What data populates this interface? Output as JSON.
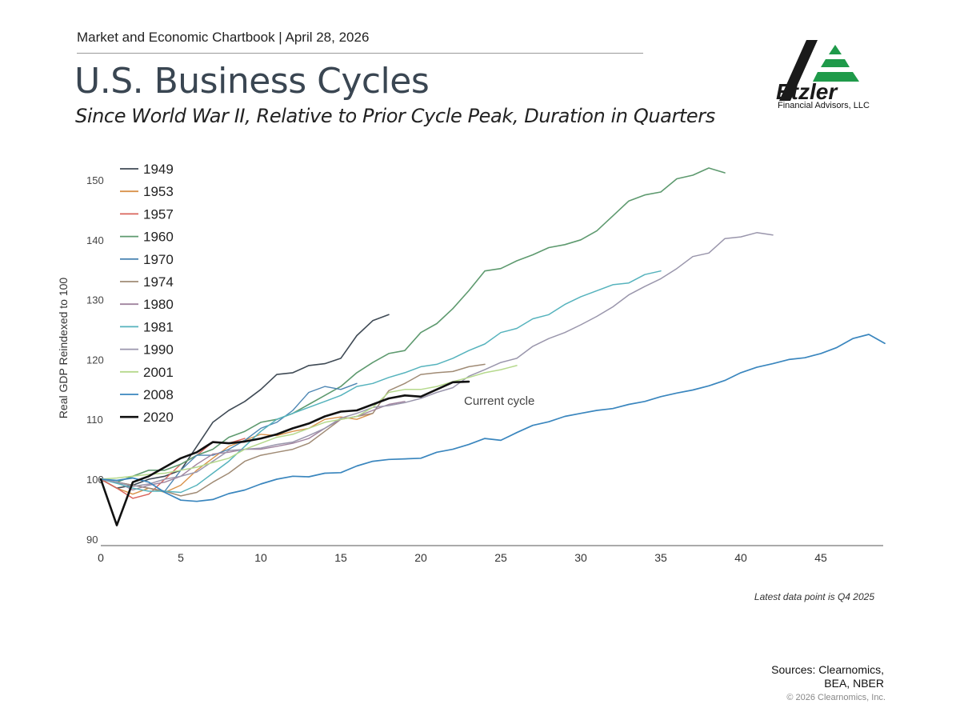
{
  "header": {
    "chartbook": "Market and Economic Chartbook | April 28, 2026",
    "title": "U.S. Business Cycles",
    "subtitle": "Since World War II, Relative to Prior Cycle Peak, Duration in Quarters"
  },
  "logo": {
    "name": "Etzler",
    "tagline": "Financial Advisors, LLC",
    "colors": {
      "dark": "#1a1a1a",
      "green": "#1f9a4a"
    }
  },
  "chart_data": {
    "type": "line",
    "title": "U.S. Business Cycles",
    "xlabel": "",
    "ylabel": "Real GDP Reindexed to 100",
    "xlim": [
      0,
      49
    ],
    "ylim": [
      90,
      152
    ],
    "x_ticks": [
      0,
      5,
      10,
      15,
      20,
      25,
      30,
      35,
      40,
      45
    ],
    "y_ticks": [
      90,
      100,
      110,
      120,
      130,
      140,
      150
    ],
    "grid": false,
    "legend_position": "top-left",
    "annotation": "Current cycle",
    "series": [
      {
        "name": "1949",
        "color": "#3f4a55",
        "width": 1.6,
        "values": [
          100,
          98.5,
          99,
          100,
          100.5,
          101.5,
          105.5,
          109.5,
          111.5,
          113,
          115,
          117.5,
          117.8,
          119,
          119.3,
          120.2,
          124,
          126.5,
          127.5
        ]
      },
      {
        "name": "1953",
        "color": "#d9924a",
        "width": 1.4,
        "values": [
          100,
          98.5,
          97.5,
          98.5,
          97.8,
          99,
          101.5,
          103.5,
          105.5,
          106.5,
          107.5,
          107.3,
          108,
          108.5,
          110,
          110.4,
          110,
          111
        ]
      },
      {
        "name": "1957",
        "color": "#d9635a",
        "width": 1.4,
        "values": [
          100,
          98.5,
          96.8,
          97.5,
          100,
          102.5,
          104,
          106.2,
          106,
          106.8
        ]
      },
      {
        "name": "1960",
        "color": "#5e9a6f",
        "width": 1.6,
        "values": [
          100,
          99.5,
          100.5,
          101.5,
          101.5,
          102.5,
          104,
          105,
          107,
          108,
          109.5,
          110,
          111,
          112.5,
          114,
          115.5,
          117.8,
          119.5,
          121,
          121.5,
          124.5,
          126,
          128.5,
          131.5,
          134.8,
          135.2,
          136.5,
          137.5,
          138.7,
          139.2,
          140,
          141.5,
          144,
          146.5,
          147.5,
          148,
          150.2,
          150.8,
          152,
          151.2
        ]
      },
      {
        "name": "1970",
        "color": "#4d86b3",
        "width": 1.4,
        "values": [
          100,
          99.5,
          99,
          98.5,
          98,
          101.5,
          104,
          104,
          105,
          106.5,
          108.5,
          109.5,
          111.5,
          114.5,
          115.5,
          115,
          116
        ]
      },
      {
        "name": "1974",
        "color": "#a08b75",
        "width": 1.5,
        "values": [
          100,
          99.5,
          99,
          98.5,
          98,
          97.2,
          97.8,
          99.5,
          101,
          103,
          104,
          104.5,
          105,
          106,
          108,
          110,
          110.5,
          111,
          114.8,
          116,
          117.5,
          117.8,
          118,
          118.8,
          119.2
        ]
      },
      {
        "name": "1980",
        "color": "#a0839e",
        "width": 1.4,
        "values": [
          100,
          99.5,
          98.2,
          99,
          99.5,
          100.5,
          102.5,
          104.2,
          104.5,
          105,
          105,
          105.5,
          106,
          106.8,
          108.5,
          110,
          110.5,
          111.5,
          112.5,
          113
        ]
      },
      {
        "name": "1981",
        "color": "#56b3bd",
        "width": 1.5,
        "values": [
          100,
          99.3,
          98.5,
          98,
          98,
          97.8,
          99,
          101,
          103,
          105.5,
          108,
          110,
          111,
          112,
          113,
          114,
          115.5,
          116,
          117,
          117.8,
          118.8,
          119.2,
          120.2,
          121.5,
          122.6,
          124.5,
          125.2,
          126.8,
          127.5,
          129.2,
          130.5,
          131.5,
          132.5,
          132.8,
          134.2,
          134.8
        ]
      },
      {
        "name": "1990",
        "color": "#9a96ac",
        "width": 1.5,
        "values": [
          100,
          99.5,
          98.8,
          99.2,
          100,
          100.5,
          101.2,
          103,
          104.8,
          105,
          105.2,
          105.8,
          106.2,
          107.3,
          108.5,
          110.2,
          111,
          112,
          112.3,
          112.8,
          113.5,
          114.5,
          115.3,
          117.2,
          118.3,
          119.5,
          120.2,
          122.2,
          123.5,
          124.5,
          125.8,
          127.2,
          128.8,
          130.8,
          132.2,
          133.5,
          135.2,
          137.2,
          137.8,
          140.2,
          140.5,
          141.2,
          140.8
        ]
      },
      {
        "name": "2001",
        "color": "#b5d98c",
        "width": 1.5,
        "values": [
          100,
          100.2,
          100.5,
          100.8,
          101,
          101.5,
          102,
          102.8,
          103.5,
          105,
          106,
          107,
          107.5,
          108.5,
          109.5,
          110,
          110.5,
          112,
          114.5,
          115,
          115,
          115.5,
          116.3,
          117,
          117.8,
          118.3,
          119
        ]
      },
      {
        "name": "2008",
        "color": "#3a86be",
        "width": 1.7,
        "values": [
          100,
          99.8,
          100.2,
          99.5,
          97.8,
          96.5,
          96.3,
          96.6,
          97.6,
          98.2,
          99.2,
          100,
          100.5,
          100.4,
          101,
          101.1,
          102.2,
          103,
          103.3,
          103.4,
          103.5,
          104.5,
          105,
          105.8,
          106.8,
          106.5,
          107.8,
          109,
          109.6,
          110.5,
          111,
          111.5,
          111.8,
          112.5,
          113,
          113.8,
          114.4,
          114.9,
          115.6,
          116.5,
          117.8,
          118.7,
          119.3,
          120,
          120.3,
          121,
          122,
          123.5,
          124.2,
          122.7
        ]
      },
      {
        "name": "2020",
        "color": "#111111",
        "width": 2.6,
        "values": [
          100,
          92.3,
          99.5,
          100.5,
          102,
          103.5,
          104.5,
          106.2,
          106,
          106.3,
          106.8,
          107.5,
          108.5,
          109.3,
          110.5,
          111.3,
          111.5,
          112.5,
          113.5,
          114,
          113.8,
          115,
          116.2,
          116.3
        ]
      }
    ]
  },
  "footnote": "Latest data point is Q4 2025",
  "sources": {
    "line1": "Sources: Clearnomics,",
    "line2": "BEA, NBER"
  },
  "copyright": "© 2026 Clearnomics, Inc."
}
